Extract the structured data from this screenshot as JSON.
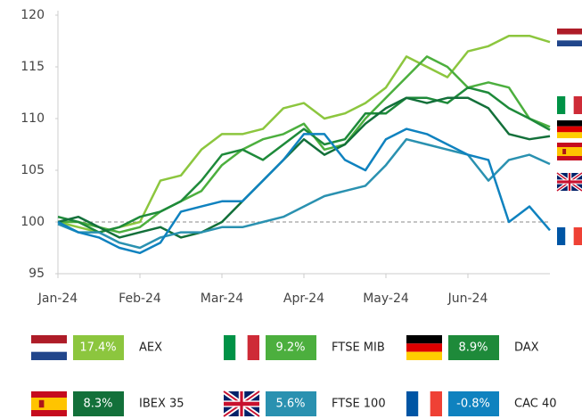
{
  "chart_data": {
    "type": "line",
    "categories": [
      "Jan-24",
      null,
      null,
      null,
      "Feb-24",
      null,
      null,
      null,
      "Mar-24",
      null,
      null,
      null,
      "Apr-24",
      null,
      null,
      null,
      "May-24",
      null,
      null,
      null,
      "Jun-24",
      null,
      null,
      null,
      null
    ],
    "ylim": [
      95,
      120
    ],
    "yticks": [
      95,
      100,
      105,
      110,
      115,
      120
    ],
    "reference_line": 100,
    "series": [
      {
        "name": "AEX",
        "color": "#8cc63e",
        "change": 17.4,
        "change_label": "17.4%",
        "values": [
          100,
          99.5,
          99,
          99.5,
          100,
          104,
          104.5,
          107,
          108.5,
          108.5,
          109,
          111,
          111.5,
          110,
          110.5,
          111.5,
          113,
          116,
          115,
          114,
          116.5,
          117,
          118,
          118,
          117.4
        ]
      },
      {
        "name": "FTSE MIB",
        "color": "#4caf3e",
        "change": 9.2,
        "change_label": "9.2%",
        "values": [
          100,
          100,
          99.5,
          99,
          99.5,
          101,
          102,
          103,
          105.5,
          107,
          108,
          108.5,
          109.5,
          107,
          107.5,
          110,
          112,
          114,
          116,
          115,
          113,
          113.5,
          113,
          110,
          109.2
        ]
      },
      {
        "name": "DAX",
        "color": "#1e8a3a",
        "change": 8.9,
        "change_label": "8.9%",
        "values": [
          100.5,
          100,
          99,
          99.5,
          100.5,
          101,
          102,
          104,
          106.5,
          107,
          106,
          107.5,
          109,
          107.5,
          108,
          110.5,
          110.5,
          112,
          112,
          111.5,
          113,
          112.5,
          111,
          110,
          108.9
        ]
      },
      {
        "name": "IBEX 35",
        "color": "#13703a",
        "change": 8.3,
        "change_label": "8.3%",
        "values": [
          100,
          100.5,
          99.5,
          98.5,
          99,
          99.5,
          98.5,
          99,
          100,
          102,
          104,
          106,
          108,
          106.5,
          107.5,
          109.5,
          111,
          112,
          111.5,
          112,
          112,
          111,
          108.5,
          108,
          108.3
        ]
      },
      {
        "name": "FTSE 100",
        "color": "#2a91b0",
        "change": 5.6,
        "change_label": "5.6%",
        "values": [
          99.8,
          99,
          99,
          98,
          97.5,
          98.5,
          99,
          99,
          99.5,
          99.5,
          100,
          100.5,
          101.5,
          102.5,
          103,
          103.5,
          105.5,
          108,
          107.5,
          107,
          106.5,
          104,
          106,
          106.5,
          105.6
        ]
      },
      {
        "name": "CAC 40",
        "color": "#0f82bf",
        "change": -0.8,
        "change_label": "-0.8%",
        "values": [
          100,
          99,
          98.5,
          97.5,
          97,
          98,
          101,
          101.5,
          102,
          102,
          104,
          106,
          108.5,
          108.5,
          106,
          105,
          108,
          109,
          108.5,
          107.5,
          106.5,
          106,
          100,
          101.5,
          99.2
        ]
      }
    ]
  }
}
